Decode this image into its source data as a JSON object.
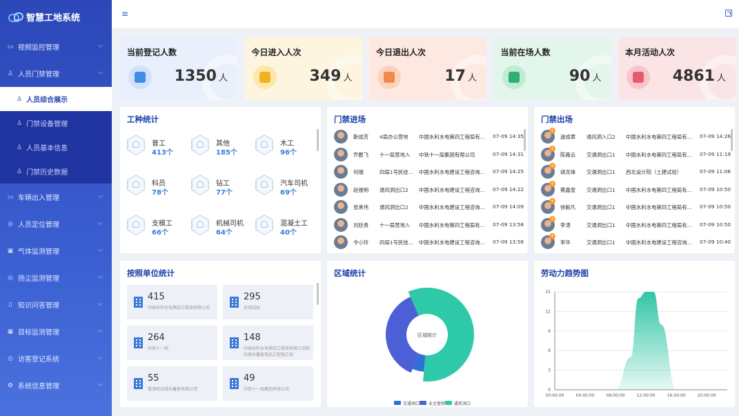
{
  "app": {
    "title": "智慧工地系统"
  },
  "sidebar": {
    "items": [
      {
        "label": "视频监控管理",
        "icon": "video-icon"
      },
      {
        "label": "人员门禁管理",
        "icon": "user-icon"
      },
      {
        "label": "车辆出入管理",
        "icon": "car-icon"
      },
      {
        "label": "人员定位管理",
        "icon": "location-icon"
      },
      {
        "label": "气体监测管理",
        "icon": "gas-icon"
      },
      {
        "label": "扬尘监测管理",
        "icon": "dust-icon"
      },
      {
        "label": "知识问答管理",
        "icon": "book-icon"
      },
      {
        "label": "目标监测管理",
        "icon": "target-icon"
      },
      {
        "label": "访客登记系统",
        "icon": "visitor-icon"
      },
      {
        "label": "系统信息管理",
        "icon": "gear-icon"
      }
    ],
    "submenu": [
      {
        "label": "人员综合展示",
        "active": true
      },
      {
        "label": "门禁设备管理"
      },
      {
        "label": "人员基本信息"
      },
      {
        "label": "门禁历史数据"
      }
    ]
  },
  "stats": [
    {
      "title": "当前登记人数",
      "value": "1350",
      "unit": "人",
      "bg": "#e9f0fc",
      "icon_bg": "#cfe1fb",
      "icon_color": "#3d8ce8"
    },
    {
      "title": "今日进入人次",
      "value": "349",
      "unit": "人",
      "bg": "#fdf5df",
      "icon_bg": "#fde7ad",
      "icon_color": "#f2b01e"
    },
    {
      "title": "今日退出人次",
      "value": "17",
      "unit": "人",
      "bg": "#fde9e1",
      "icon_bg": "#fbd2bd",
      "icon_color": "#f08a4b"
    },
    {
      "title": "当前在场人数",
      "value": "90",
      "unit": "人",
      "bg": "#e3f6ec",
      "icon_bg": "#c1ebd4",
      "icon_color": "#2fb070"
    },
    {
      "title": "本月活动人次",
      "value": "4861",
      "unit": "人",
      "bg": "#fbe4e6",
      "icon_bg": "#f8c5cb",
      "icon_color": "#e65a6e"
    }
  ],
  "worktype": {
    "title": "工种统计",
    "items": [
      {
        "name": "普工",
        "count": "413个"
      },
      {
        "name": "其他",
        "count": "185个"
      },
      {
        "name": "木工",
        "count": "96个"
      },
      {
        "name": "科员",
        "count": "78个"
      },
      {
        "name": "钻工",
        "count": "77个"
      },
      {
        "name": "汽车司机",
        "count": "69个"
      },
      {
        "name": "支模工",
        "count": "66个"
      },
      {
        "name": "机械司机",
        "count": "64个"
      },
      {
        "name": "混凝土工",
        "count": "40个"
      }
    ]
  },
  "entry": {
    "title": "门禁进场",
    "rows": [
      {
        "name": "靳成芳",
        "gate": "4局办公营地",
        "company": "中国水利水电第四工程局有...",
        "time": "07-09 14:35"
      },
      {
        "name": "乔鹏飞",
        "gate": "十一局营地入",
        "company": "中铁十一局集团有限公司",
        "time": "07-09 14:31"
      },
      {
        "name": "何瑞",
        "gate": "四局1号民技工...",
        "company": "中国水利水电建设工程咨询...",
        "time": "07-09 14:25"
      },
      {
        "name": "赵维明",
        "gate": "通风洞出口2",
        "company": "中国水利水电建设工程咨询...",
        "time": "07-09 14:22"
      },
      {
        "name": "张承伟",
        "gate": "通风洞出口2",
        "company": "中国水利水电建设工程咨询...",
        "time": "07-09 14:09"
      },
      {
        "name": "刘廷贵",
        "gate": "十一局营地入",
        "company": "中国水利水电第四工程局有...",
        "time": "07-09 13:58"
      },
      {
        "name": "令小玲",
        "gate": "四局1号民技工...",
        "company": "中国水利水电建设工程咨询...",
        "time": "07-09 13:56"
      }
    ]
  },
  "exit": {
    "title": "门禁出场",
    "rows": [
      {
        "name": "逯成章",
        "gate": "通风洞入口2",
        "company": "中国水利水电第四工程局有...",
        "time": "07-09 14:26"
      },
      {
        "name": "陈路云",
        "gate": "交通洞出口1",
        "company": "中国水利水电第四工程局有...",
        "time": "07-09 11:19"
      },
      {
        "name": "胡龙锋",
        "gate": "交通洞出口1",
        "company": "西北设计院（土建试验）",
        "time": "07-09 11:06"
      },
      {
        "name": "蔡鑫奎",
        "gate": "交通洞出口1",
        "company": "中国水利水电第四工程局有...",
        "time": "07-09 10:50"
      },
      {
        "name": "徐毅凡",
        "gate": "交通洞出口1",
        "company": "中国水利水电第四工程局有...",
        "time": "07-09 10:50"
      },
      {
        "name": "李涛",
        "gate": "交通洞出口1",
        "company": "中国水利水电第四工程局有...",
        "time": "07-09 10:50"
      },
      {
        "name": "李华",
        "gate": "交通洞出口1",
        "company": "中国水利水电建设工程咨询...",
        "time": "07-09 10:40"
      }
    ]
  },
  "units": {
    "title": "按照单位统计",
    "items": [
      {
        "count": "415",
        "name": "中国水利水电第四工程局有限公司"
      },
      {
        "count": "295",
        "name": "水电四局"
      },
      {
        "count": "264",
        "name": "中铁十一局"
      },
      {
        "count": "148",
        "name": "中国水利水电第四工程局有限公司旺拉绿水蓄能电站工程施工局"
      },
      {
        "count": "55",
        "name": "青海旺拉绿水蓄能有限公司"
      },
      {
        "count": "49",
        "name": "中铁十一局集团有限公司"
      }
    ]
  },
  "region": {
    "title": "区域统计",
    "center_label": "区域统计",
    "legend": [
      {
        "name": "交通洞口",
        "color": "#2f6fd8"
      },
      {
        "name": "业主营地",
        "color": "#4b5fd6"
      },
      {
        "name": "通风洞口",
        "color": "#2ec9a9"
      }
    ]
  },
  "trend": {
    "title": "劳动力趋势图"
  },
  "chart_data": [
    {
      "type": "pie",
      "title": "区域统计",
      "labels": [
        "交通洞口",
        "业主营地",
        "通风洞口"
      ],
      "values": [
        5,
        37,
        58
      ]
    },
    {
      "type": "area",
      "title": "劳动力趋势图",
      "x": [
        "00:00:00",
        "04:00:00",
        "08:00:00",
        "10:00:00",
        "11:00:00",
        "12:00:00",
        "13:00:00",
        "14:00:00",
        "16:00:00",
        "20:00:00"
      ],
      "y": [
        0,
        0,
        0,
        5,
        14,
        15,
        15,
        10,
        0,
        0
      ],
      "ylim": [
        0,
        15
      ],
      "yticks": [
        0,
        3,
        6,
        9,
        12,
        15
      ],
      "xticks": [
        "00:00:00",
        "04:00:00",
        "08:00:00",
        "12:00:00",
        "16:00:00",
        "20:00:00"
      ]
    }
  ]
}
